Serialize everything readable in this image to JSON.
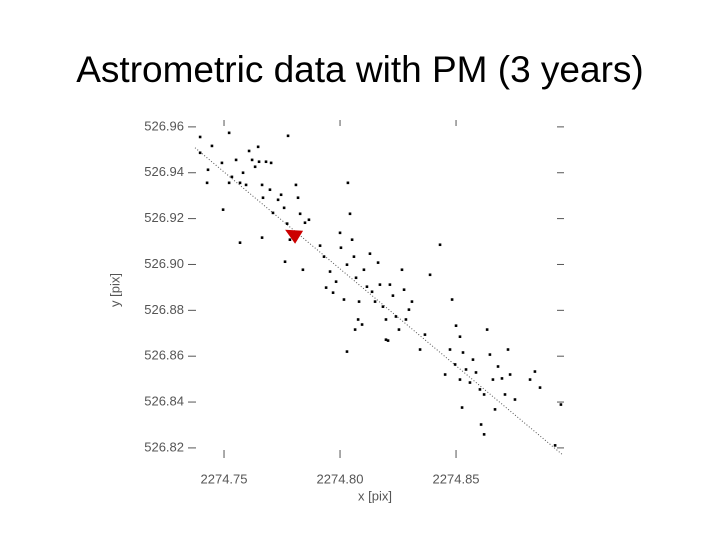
{
  "chart_data": {
    "type": "scatter",
    "title": "Astrometric data with PM (3 years)",
    "x_label": "x [pix]",
    "y_label": "y [pix]",
    "color": "#000000",
    "x": [
      2274.7397,
      2274.7448,
      2274.7431,
      2274.7427,
      2274.7491,
      2274.7522,
      2274.7534,
      2274.7552,
      2274.7569,
      2274.7582,
      2274.7595,
      2274.7608,
      2274.7621,
      2274.7634,
      2274.7651,
      2274.7647,
      2274.7664,
      2274.7668,
      2274.7681,
      2274.7703,
      2274.7698,
      2274.7711,
      2274.7733,
      2274.7746,
      2274.7759,
      2274.7772,
      2274.7784,
      2274.781,
      2274.7819,
      2274.7828,
      2274.7849,
      2274.7866,
      2274.7776,
      2274.7522,
      2274.7496,
      2274.7569,
      2274.7664,
      2274.7763,
      2274.784,
      2274.7914,
      2274.7931,
      2274.794,
      2274.7957,
      2274.797,
      2274.7983,
      2274.8,
      2274.8004,
      2274.8017,
      2274.803,
      2274.8043,
      2274.8052,
      2274.806,
      2274.8069,
      2274.8082,
      2274.8095,
      2274.8103,
      2274.8116,
      2274.8129,
      2274.8138,
      2274.8151,
      2274.8164,
      2274.8172,
      2274.8185,
      2274.8198,
      2274.8207,
      2274.8215,
      2274.8228,
      2274.8241,
      2274.8254,
      2274.8267,
      2274.8276,
      2274.8284,
      2274.8297,
      2274.831,
      2274.8034,
      2274.803,
      2274.8078,
      2274.8065,
      2274.8198,
      2274.8345,
      2274.8366,
      2274.8388,
      2274.8431,
      2274.8483,
      2274.85,
      2274.8517,
      2274.8453,
      2274.8474,
      2274.8496,
      2274.8517,
      2274.853,
      2274.8543,
      2274.856,
      2274.8573,
      2274.8586,
      2274.8603,
      2274.8621,
      2274.8634,
      2274.8646,
      2274.8659,
      2274.8668,
      2274.8681,
      2274.8698,
      2274.8711,
      2274.8724,
      2274.8733,
      2274.8754,
      2274.8526,
      2274.8608,
      2274.8621,
      2274.8819,
      2274.884,
      2274.8862,
      2274.8927,
      2274.8952,
      2274.7397
    ],
    "values": [
      526.9487,
      526.9517,
      526.9413,
      526.9356,
      526.9443,
      526.9356,
      526.9382,
      526.9456,
      526.9356,
      526.94,
      526.9347,
      526.9495,
      526.9456,
      526.9426,
      526.9448,
      526.9513,
      526.9347,
      526.9291,
      526.9448,
      526.9443,
      526.9326,
      526.9225,
      526.9282,
      526.9304,
      526.9247,
      526.9178,
      526.9108,
      526.9347,
      526.9291,
      526.9221,
      526.9182,
      526.9195,
      526.9561,
      526.9574,
      526.9239,
      526.9095,
      526.9117,
      526.9012,
      526.8977,
      526.9082,
      526.9034,
      526.8899,
      526.8969,
      526.8877,
      526.8925,
      526.9138,
      526.9073,
      526.8847,
      526.8999,
      526.9221,
      526.9108,
      526.9034,
      526.8942,
      526.8838,
      526.8738,
      526.8977,
      526.8903,
      526.9047,
      526.8881,
      526.8838,
      526.9008,
      526.8912,
      526.8816,
      526.876,
      526.8668,
      526.8912,
      526.8864,
      526.8773,
      526.8716,
      526.8977,
      526.889,
      526.876,
      526.8803,
      526.8838,
      526.9356,
      526.862,
      526.876,
      526.8716,
      526.8672,
      526.8629,
      526.8694,
      526.8955,
      526.9086,
      526.8847,
      526.8733,
      526.8685,
      526.852,
      526.8629,
      526.8564,
      526.8498,
      526.8616,
      526.8542,
      526.8485,
      526.8585,
      526.8529,
      526.8455,
      526.8433,
      526.8716,
      526.8607,
      526.8498,
      526.8368,
      526.8555,
      526.8503,
      526.8433,
      526.8629,
      526.852,
      526.8411,
      526.8376,
      526.8302,
      526.8259,
      526.8498,
      526.8533,
      526.8463,
      526.8211,
      526.8389,
      526.9556
    ],
    "fit_line": {
      "x": [
        2274.7375,
        2274.8957
      ],
      "y": [
        526.9509,
        526.8172
      ],
      "color": "#555555"
    },
    "highlight": {
      "x": 2274.7802,
      "y": 526.9125,
      "color": "#cc0000"
    },
    "xlim": [
      2274.7362,
      2274.8961
    ],
    "ylim": [
      526.8156,
      526.963
    ],
    "xticks": [
      2274.75,
      {
        "value": 2274.8,
        "label": "2274.80"
      },
      2274.85
    ],
    "yticks": [
      526.82,
      526.84,
      526.86,
      526.88,
      {
        "value": 526.9,
        "label": "526.90"
      },
      526.92,
      526.94,
      526.96
    ],
    "grid": false
  }
}
